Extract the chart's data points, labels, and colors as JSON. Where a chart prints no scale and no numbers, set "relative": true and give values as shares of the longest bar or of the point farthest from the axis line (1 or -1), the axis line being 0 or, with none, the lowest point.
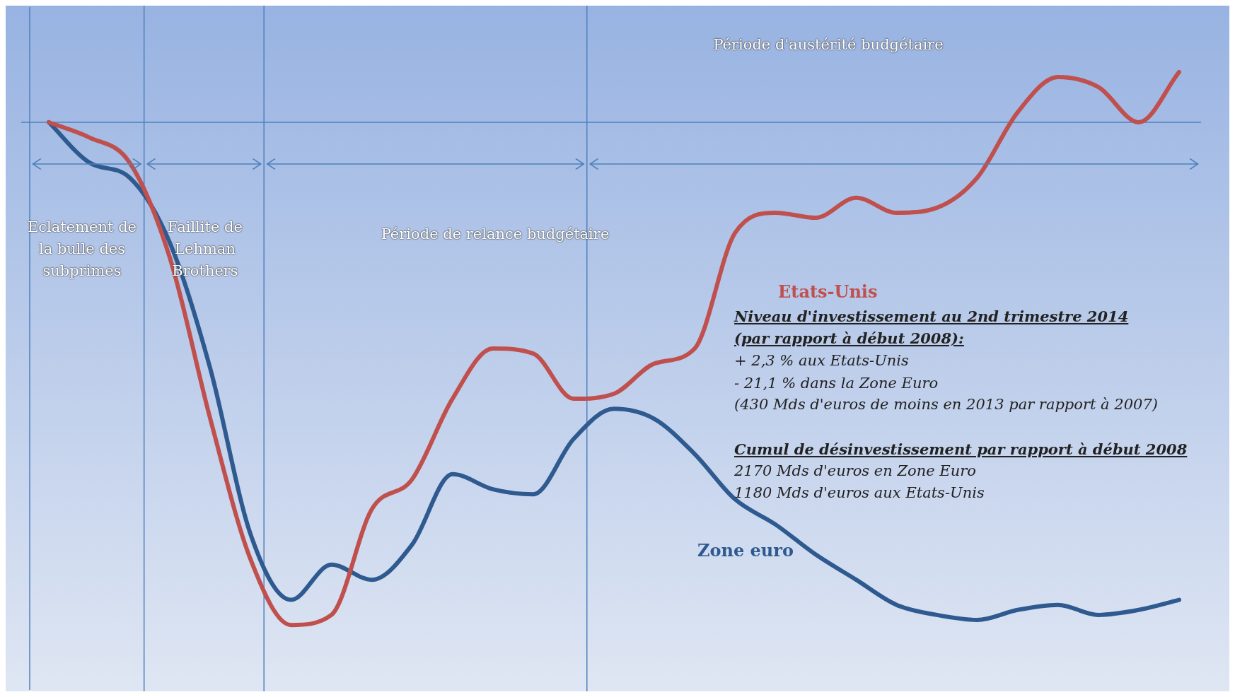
{
  "chart_data": {
    "type": "line",
    "relative": true,
    "marker": "none",
    "legend": false,
    "ref_lines": [
      {
        "axis": "y",
        "value": 0,
        "color": "#4f81bd"
      }
    ],
    "categories": [
      null,
      null,
      null,
      null,
      null,
      null,
      null,
      null,
      null,
      null,
      null,
      null,
      null,
      null,
      null,
      null,
      null,
      null,
      null,
      null,
      null,
      null,
      null,
      null,
      null,
      null,
      null,
      null,
      null
    ],
    "series": [
      {
        "name": "Etats-Unis",
        "color": "#c0504d",
        "values": [
          0,
          -0.03,
          -0.08,
          -0.27,
          -0.59,
          -0.87,
          -1,
          -0.98,
          -0.77,
          -0.71,
          -0.55,
          -0.45,
          -0.46,
          -0.55,
          -0.54,
          -0.48,
          -0.45,
          -0.22,
          -0.18,
          -0.19,
          -0.15,
          -0.18,
          -0.17,
          -0.11,
          0.02,
          0.09,
          0.07,
          0,
          0.1
        ]
      },
      {
        "name": "Zone euro",
        "color": "#2f5a8f",
        "values": [
          0,
          -0.08,
          -0.11,
          -0.24,
          -0.49,
          -0.82,
          -0.95,
          -0.88,
          -0.91,
          -0.84,
          -0.7,
          -0.73,
          -0.74,
          -0.63,
          -0.57,
          -0.59,
          -0.66,
          -0.75,
          -0.8,
          -0.86,
          -0.91,
          -0.96,
          -0.98,
          -0.99,
          -0.97,
          -0.96,
          -0.98,
          -0.97,
          -0.95
        ]
      }
    ],
    "annotations": [
      "Eclatement de la bulle des subprimes",
      "Faillite de Lehman Brothers",
      "Période de relance budgétaire",
      "Période d'austérité budgétaire",
      "Niveau d'investissement au 2nd trimestre 2014",
      "(par rapport à début 2008):",
      "+ 2,3 % aux Etats-Unis",
      "- 21,1 % dans la Zone Euro",
      "(430 Mds d'euros de moins en 2013 par rapport à 2007)",
      "Cumul de désinvestissement par rapport à début 2008",
      "2170 Mds d'euros en Zone Euro",
      "1180 Mds d'euros aux Etats-Unis"
    ]
  }
}
